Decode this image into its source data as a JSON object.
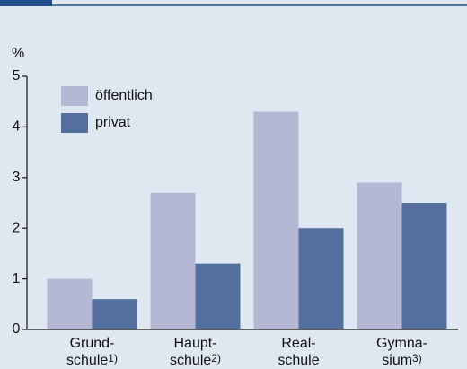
{
  "chart_data": {
    "type": "bar",
    "y_label": "%",
    "categories": [
      [
        "Grund-",
        "schule"
      ],
      [
        "Haupt-",
        "schule"
      ],
      [
        "Real-",
        "schule"
      ],
      [
        "Gymna-",
        "sium"
      ]
    ],
    "category_notes": [
      "1)",
      "2)",
      null,
      "3)"
    ],
    "series": [
      {
        "name": "öffentlich",
        "color": "#b5b8d5",
        "values": [
          1.0,
          2.7,
          4.3,
          2.9
        ]
      },
      {
        "name": "privat",
        "color": "#546f9d",
        "values": [
          0.6,
          1.3,
          2.0,
          2.5
        ]
      }
    ],
    "ylim": [
      0,
      5
    ],
    "yticks": [
      0,
      1,
      2,
      3,
      4,
      5
    ],
    "legend": "top-left"
  }
}
